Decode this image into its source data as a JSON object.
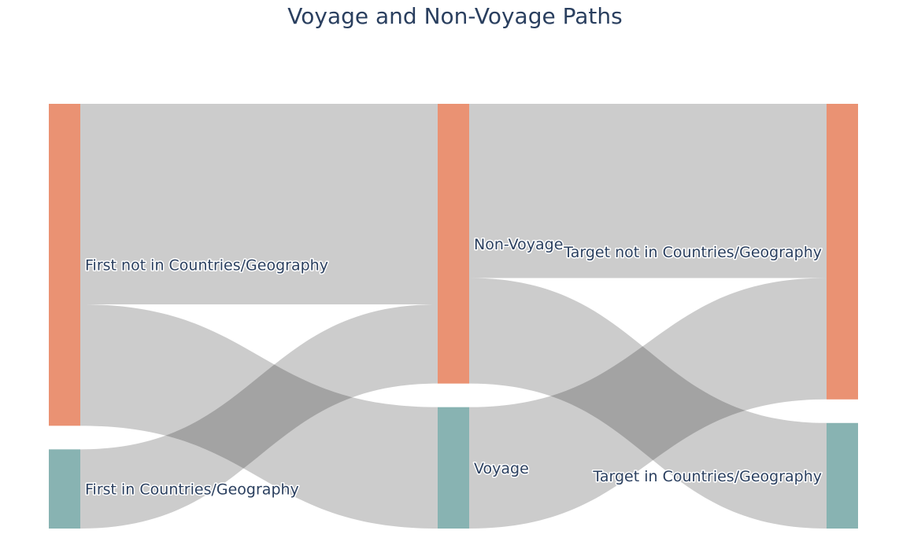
{
  "chart_data": {
    "type": "sankey",
    "title": "Voyage and Non-Voyage Paths",
    "node_color_main": "#ea9273",
    "node_color_minor": "#88b3b2",
    "link_color": "#cccccc",
    "link_overlap_color": "#a3a3a3",
    "nodes": [
      {
        "label": "First not in Countries/Geography",
        "value": 305,
        "column": 0
      },
      {
        "label": "First in Countries/Geography",
        "value": 75,
        "column": 0
      },
      {
        "label": "Non-Voyage",
        "value": 265,
        "column": 1
      },
      {
        "label": "Voyage",
        "value": 115,
        "column": 1
      },
      {
        "label": "Target not in Countries/Geography",
        "value": 280,
        "column": 2
      },
      {
        "label": "Target in Countries/Geography",
        "value": 100,
        "column": 2
      }
    ],
    "links": [
      {
        "source": 0,
        "target": 2,
        "value": 190
      },
      {
        "source": 0,
        "target": 3,
        "value": 115
      },
      {
        "source": 1,
        "target": 2,
        "value": 75
      },
      {
        "source": 2,
        "target": 4,
        "value": 165
      },
      {
        "source": 2,
        "target": 5,
        "value": 100
      },
      {
        "source": 3,
        "target": 4,
        "value": 115
      }
    ]
  }
}
